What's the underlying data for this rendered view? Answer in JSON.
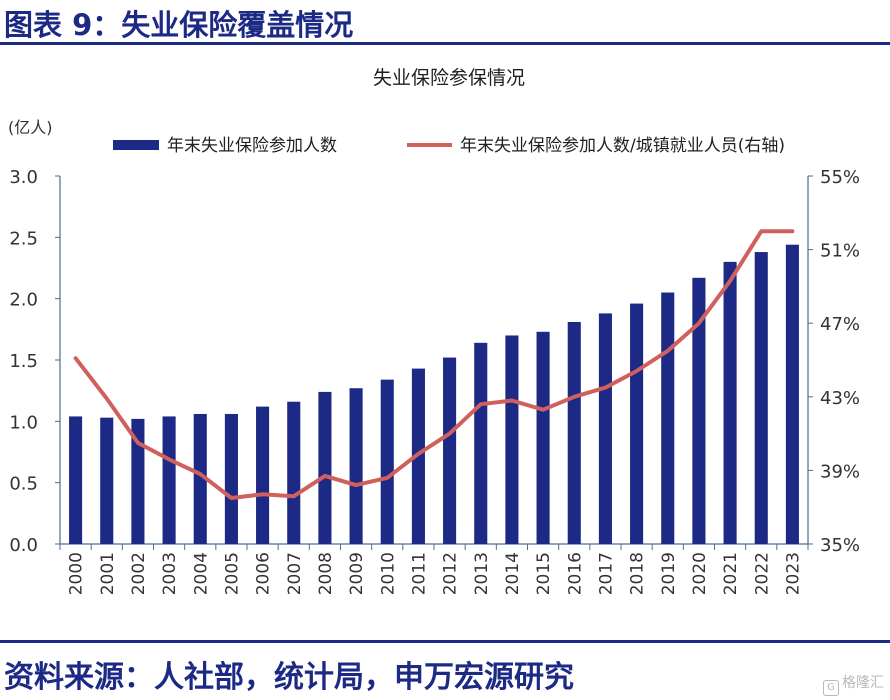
{
  "header": {
    "title": "图表 9：失业保险覆盖情况"
  },
  "footer": {
    "source": "资料来源：人社部，统计局，申万宏源研究"
  },
  "watermark": {
    "text": "格隆汇",
    "icon": "logo-icon"
  },
  "colors": {
    "bar": "#1c2a86",
    "line": "#d0605d",
    "axis": "#4a6e95",
    "brand": "#1c2a86"
  },
  "chart_data": {
    "type": "bar",
    "title": "失业保险参保情况",
    "y_left_unit": "(亿人)",
    "categories": [
      "2000",
      "2001",
      "2002",
      "2003",
      "2004",
      "2005",
      "2006",
      "2007",
      "2008",
      "2009",
      "2010",
      "2011",
      "2012",
      "2013",
      "2014",
      "2015",
      "2016",
      "2017",
      "2018",
      "2019",
      "2020",
      "2021",
      "2022",
      "2023"
    ],
    "series": [
      {
        "name": "年末失业保险参加人数",
        "type": "bar",
        "axis": "left",
        "values": [
          1.04,
          1.03,
          1.02,
          1.04,
          1.06,
          1.06,
          1.12,
          1.16,
          1.24,
          1.27,
          1.34,
          1.43,
          1.52,
          1.64,
          1.7,
          1.73,
          1.81,
          1.88,
          1.96,
          2.05,
          2.17,
          2.3,
          2.38,
          2.44
        ]
      },
      {
        "name": "年末失业保险参加人数/城镇就业人员(右轴)",
        "type": "line",
        "axis": "right",
        "values": [
          45.1,
          42.9,
          40.5,
          39.6,
          38.8,
          37.5,
          37.7,
          37.6,
          38.7,
          38.2,
          38.6,
          39.9,
          41.0,
          42.6,
          42.8,
          42.3,
          43.0,
          43.5,
          44.4,
          45.5,
          47.0,
          49.3,
          52.0,
          52.0
        ]
      }
    ],
    "y_left": {
      "min": 0,
      "max": 3.0,
      "ticks": [
        "0.0",
        "0.5",
        "1.0",
        "1.5",
        "2.0",
        "2.5",
        "3.0"
      ]
    },
    "y_right": {
      "min": 35,
      "max": 55,
      "ticks": [
        "35%",
        "39%",
        "43%",
        "47%",
        "51%",
        "55%"
      ]
    },
    "legend_position": "top",
    "grid": false
  }
}
